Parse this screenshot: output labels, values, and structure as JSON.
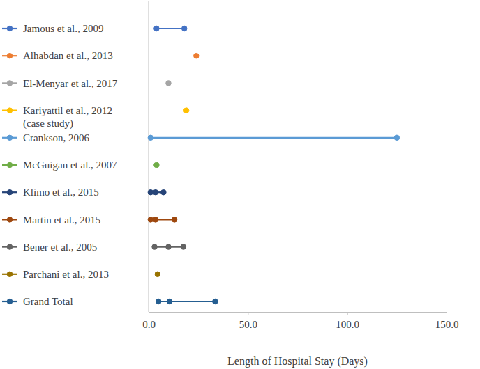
{
  "chart_data": {
    "type": "line",
    "orientation": "horizontal",
    "marker": "circle",
    "legend": "left",
    "x_label": "Length of Hospital Stay (Days)",
    "xlim": [
      0,
      150
    ],
    "xticks": [
      {
        "value": 0,
        "label": "0.0"
      },
      {
        "value": 50,
        "label": "50.0"
      },
      {
        "value": 100,
        "label": "100.0"
      },
      {
        "value": 150,
        "label": "150.0"
      }
    ],
    "series": [
      {
        "name": "Jamous et al., 2009",
        "color": "#4472c4",
        "values": [
          4,
          18
        ]
      },
      {
        "name": "Alhabdan et al., 2013",
        "color": "#ed7d31",
        "values": [
          24
        ]
      },
      {
        "name": "El-Menyar et al., 2017",
        "color": "#a5a5a5",
        "values": [
          10
        ]
      },
      {
        "name": "Kariyattil et al., 2012\n(case study)",
        "color": "#ffc000",
        "values": [
          19
        ]
      },
      {
        "name": "Crankson, 2006",
        "color": "#5b9bd5",
        "values": [
          1,
          125
        ]
      },
      {
        "name": "McGuigan et al., 2007",
        "color": "#70ad47",
        "values": [
          4
        ]
      },
      {
        "name": "Klimo et al., 2015",
        "color": "#264478",
        "values": [
          1,
          3.5,
          7.5
        ]
      },
      {
        "name": "Martin et al., 2015",
        "color": "#9e480e",
        "values": [
          1,
          3.5,
          13
        ]
      },
      {
        "name": "Bener et al., 2005",
        "color": "#636363",
        "values": [
          3,
          10,
          17.5
        ]
      },
      {
        "name": "Parchani et al., 2013",
        "color": "#997300",
        "values": [
          4.5
        ]
      },
      {
        "name": "Grand Total",
        "color": "#255e91",
        "values": [
          5,
          10.5,
          33.5
        ]
      }
    ]
  }
}
